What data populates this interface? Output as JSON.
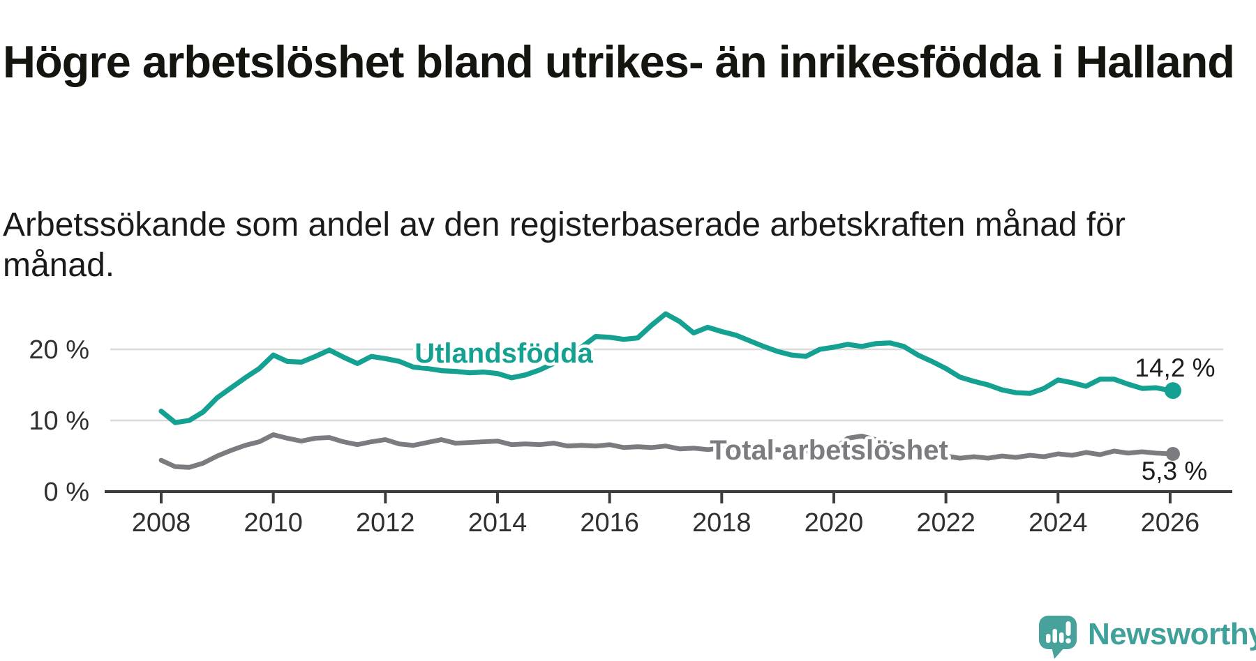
{
  "title": "Högre arbetslöshet bland utrikes- än inrikesfödda i Halland",
  "subtitle": "Arbetssökande som andel av den registerbaserade arbetskraften månad för månad.",
  "chart_data": {
    "type": "line",
    "x_start": 2008,
    "x_step_years": 0.25,
    "x_ticks": [
      2008,
      2010,
      2012,
      2014,
      2016,
      2018,
      2020,
      2022,
      2024,
      2026
    ],
    "y_ticks": [
      {
        "value": 0,
        "label": "0 %"
      },
      {
        "value": 10,
        "label": "10 %"
      },
      {
        "value": 20,
        "label": "20 %"
      }
    ],
    "ylim": [
      0,
      27
    ],
    "grid": "horizontal-only",
    "legend_position": "inline-labels",
    "series": [
      {
        "name": "Utlandsfödda",
        "color": "#15a192",
        "end_label": "14,2 %",
        "end_value": 14.2,
        "values": [
          11.3,
          9.7,
          10.0,
          11.2,
          13.2,
          14.6,
          16.0,
          17.3,
          19.2,
          18.3,
          18.2,
          19.0,
          19.9,
          18.9,
          18.0,
          19.0,
          18.7,
          18.3,
          17.5,
          17.3,
          17.0,
          16.9,
          16.7,
          16.8,
          16.6,
          16.0,
          16.4,
          17.1,
          18.0,
          19.0,
          20.3,
          21.8,
          21.7,
          21.4,
          21.6,
          23.4,
          25.0,
          23.9,
          22.3,
          23.1,
          22.5,
          22.0,
          21.2,
          20.4,
          19.7,
          19.2,
          19.0,
          20.0,
          20.3,
          20.7,
          20.4,
          20.8,
          20.9,
          20.4,
          19.2,
          18.3,
          17.3,
          16.1,
          15.5,
          15.0,
          14.3,
          13.9,
          13.8,
          14.5,
          15.7,
          15.3,
          14.8,
          15.8,
          15.8,
          15.1,
          14.5,
          14.6,
          14.2
        ]
      },
      {
        "name": "Total arbetslöshet",
        "color": "#7c7c80",
        "end_label": "5,3 %",
        "end_value": 5.3,
        "values": [
          4.4,
          3.5,
          3.4,
          4.0,
          5.0,
          5.8,
          6.5,
          7.0,
          8.0,
          7.5,
          7.1,
          7.5,
          7.6,
          7.0,
          6.6,
          7.0,
          7.3,
          6.7,
          6.5,
          6.9,
          7.3,
          6.8,
          6.9,
          7.0,
          7.1,
          6.6,
          6.7,
          6.6,
          6.8,
          6.4,
          6.5,
          6.4,
          6.6,
          6.2,
          6.3,
          6.2,
          6.4,
          6.0,
          6.1,
          5.9,
          6.1,
          5.8,
          5.9,
          5.7,
          5.9,
          5.6,
          5.7,
          5.6,
          5.9,
          7.5,
          7.8,
          7.3,
          6.7,
          6.2,
          5.7,
          5.2,
          5.0,
          4.7,
          4.9,
          4.7,
          5.0,
          4.8,
          5.1,
          4.9,
          5.3,
          5.1,
          5.5,
          5.2,
          5.7,
          5.4,
          5.6,
          5.4,
          5.3
        ]
      }
    ]
  },
  "colors": {
    "grid": "#dadada",
    "axis": "#3d3d3d",
    "tick_label": "#303030",
    "end_label": "#1c1c1c",
    "title": "#15150f",
    "logo_teal": "#47a29b"
  },
  "logo": {
    "text": "Newsworthy",
    "icon": "bar-chart-exclamation-speech-bubble-icon"
  }
}
